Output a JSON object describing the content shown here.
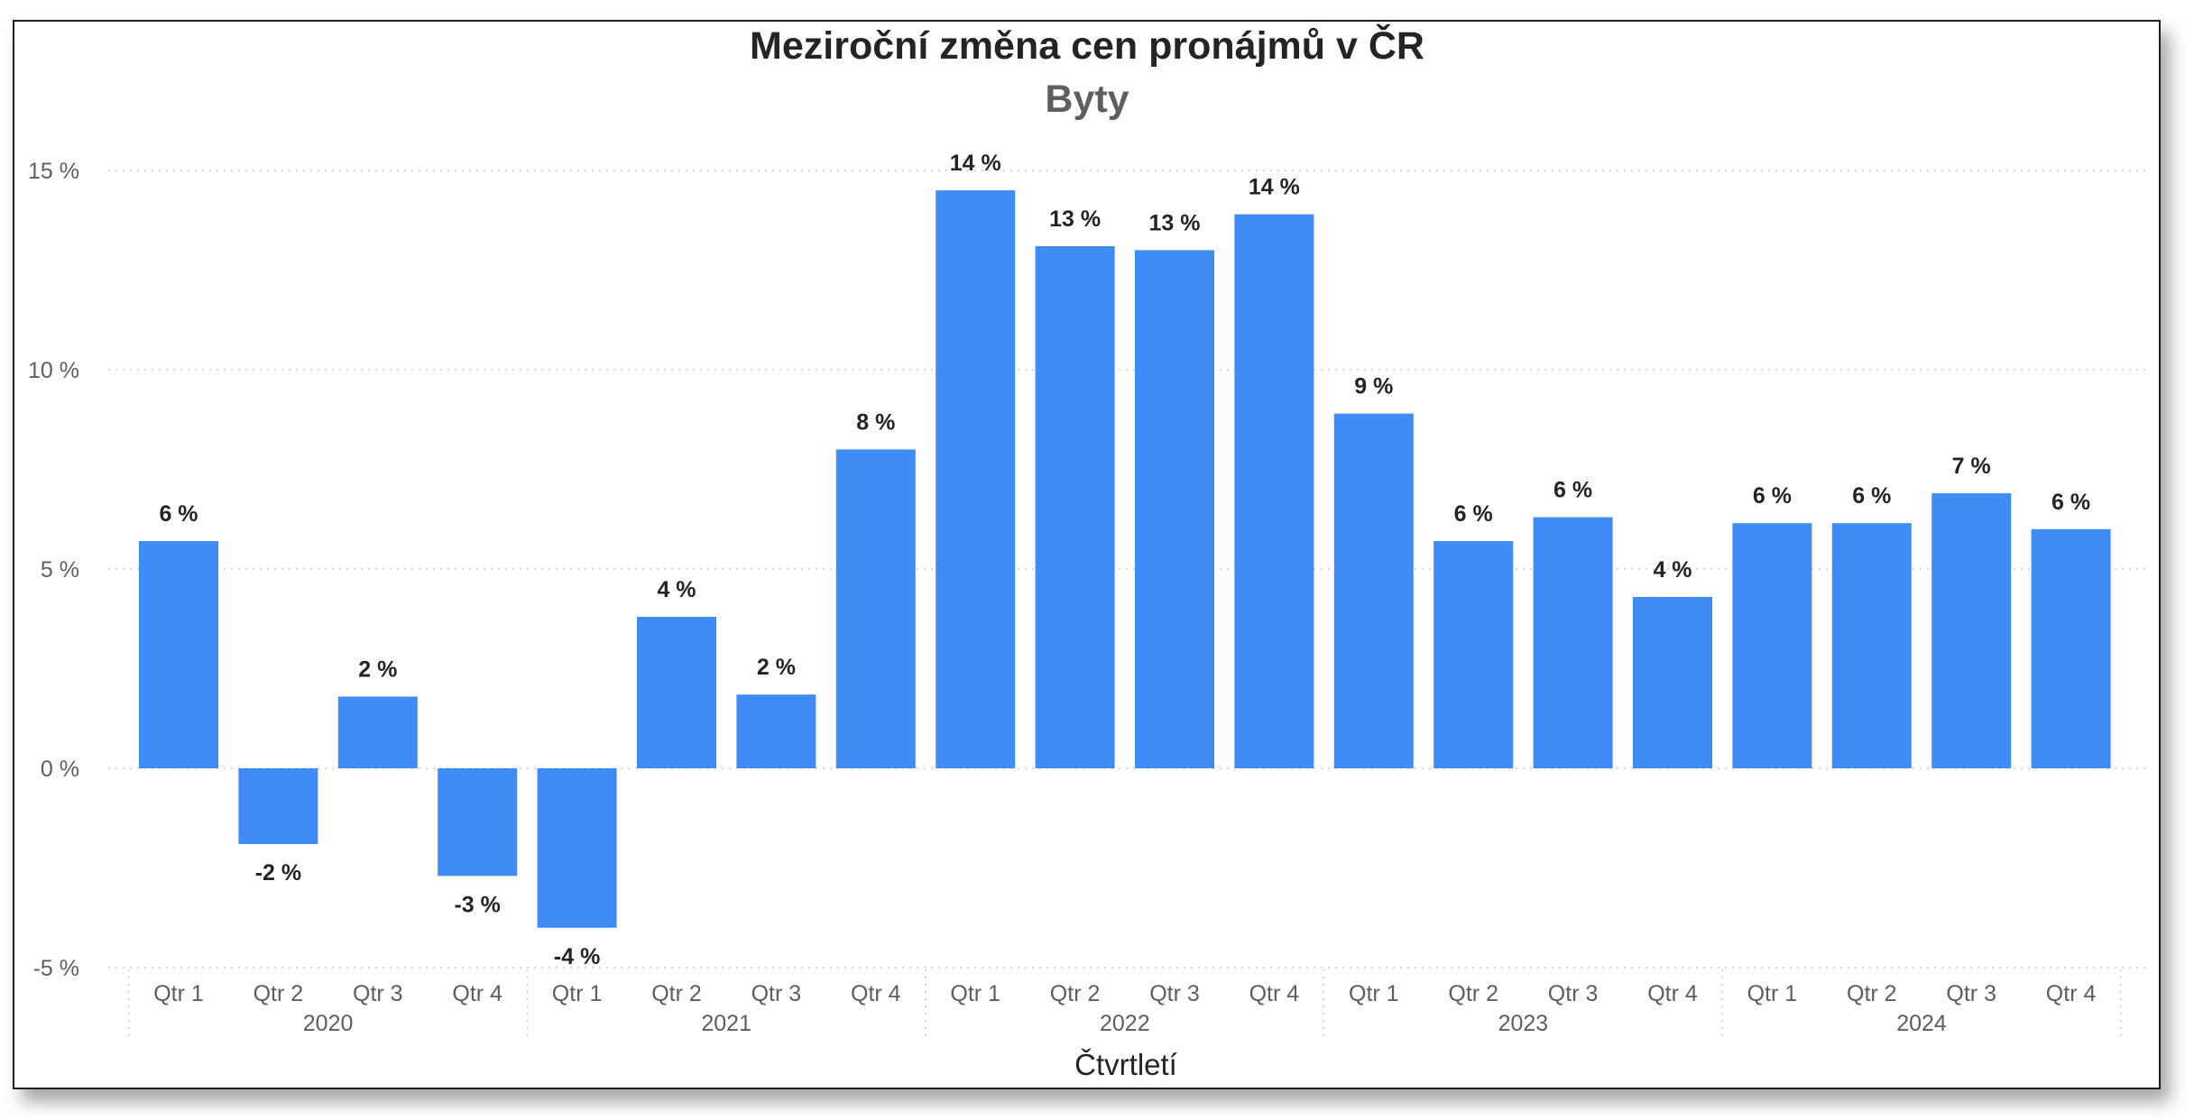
{
  "chart_data": {
    "type": "bar",
    "title": "Meziroční změna cen pronájmů v ČR",
    "subtitle": "Byty",
    "xlabel": "Čtvrtletí",
    "ylabel": "",
    "ylim": [
      -5,
      15
    ],
    "yticks": [
      15,
      10,
      5,
      0,
      -5
    ],
    "ytick_labels": [
      "15 %",
      "10 %",
      "5 %",
      "0 %",
      "-5 %"
    ],
    "grid": true,
    "groups": [
      "2020",
      "2021",
      "2022",
      "2023",
      "2024"
    ],
    "categories": [
      "Qtr 1",
      "Qtr 2",
      "Qtr 3",
      "Qtr 4",
      "Qtr 1",
      "Qtr 2",
      "Qtr 3",
      "Qtr 4",
      "Qtr 1",
      "Qtr 2",
      "Qtr 3",
      "Qtr 4",
      "Qtr 1",
      "Qtr 2",
      "Qtr 3",
      "Qtr 4",
      "Qtr 1",
      "Qtr 2",
      "Qtr 3",
      "Qtr 4"
    ],
    "values": [
      5.7,
      -1.9,
      1.8,
      -2.7,
      -4.0,
      3.8,
      1.85,
      8.0,
      14.5,
      13.1,
      13.0,
      13.9,
      8.9,
      5.7,
      6.3,
      4.3,
      6.15,
      6.15,
      6.9,
      6.0
    ],
    "data_labels": [
      "6 %",
      "-2 %",
      "2 %",
      "-3 %",
      "-4 %",
      "4 %",
      "2 %",
      "8 %",
      "14 %",
      "13 %",
      "13 %",
      "14 %",
      "9 %",
      "6 %",
      "6 %",
      "4 %",
      "6 %",
      "6 %",
      "7 %",
      "6 %"
    ],
    "bar_color": "#3f8cf7"
  }
}
